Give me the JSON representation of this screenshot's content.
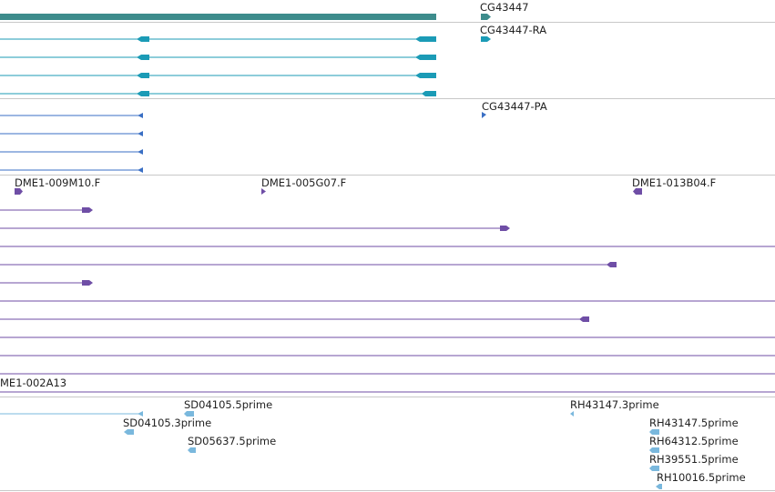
{
  "browser": {
    "tracks": [
      {
        "name": "gene-track",
        "colors": {
          "gene": "#3d8c8c",
          "transcript": "#1b9bb6",
          "protein": "#3a6fc4"
        },
        "genes": [
          {
            "label": "CG43447"
          }
        ],
        "transcripts": [
          {
            "label": "CG43447-RA"
          }
        ],
        "proteins": [
          {
            "label": "CG43447-PA"
          }
        ]
      },
      {
        "name": "clone-track",
        "color": "#6f4ea6",
        "clones": [
          {
            "label": "DME1-009M10.F"
          },
          {
            "label": "DME1-005G07.F"
          },
          {
            "label": "DME1-013B04.F"
          },
          {
            "label": "ME1-002A13"
          }
        ]
      },
      {
        "name": "est-track",
        "color": "#7ab8dd",
        "ests": [
          {
            "label": "SD04105.5prime"
          },
          {
            "label": "SD04105.3prime"
          },
          {
            "label": "SD05637.5prime"
          },
          {
            "label": "RH43147.3prime"
          },
          {
            "label": "RH43147.5prime"
          },
          {
            "label": "RH64312.5prime"
          },
          {
            "label": "RH39551.5prime"
          },
          {
            "label": "RH10016.5prime"
          }
        ]
      }
    ]
  }
}
